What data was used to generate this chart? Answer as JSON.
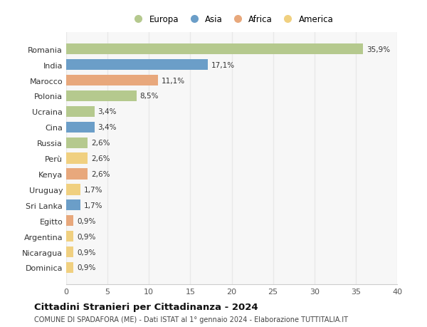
{
  "countries": [
    "Romania",
    "India",
    "Marocco",
    "Polonia",
    "Ucraina",
    "Cina",
    "Russia",
    "Perù",
    "Kenya",
    "Uruguay",
    "Sri Lanka",
    "Egitto",
    "Argentina",
    "Nicaragua",
    "Dominica"
  ],
  "values": [
    35.9,
    17.1,
    11.1,
    8.5,
    3.4,
    3.4,
    2.6,
    2.6,
    2.6,
    1.7,
    1.7,
    0.9,
    0.9,
    0.9,
    0.9
  ],
  "labels": [
    "35,9%",
    "17,1%",
    "11,1%",
    "8,5%",
    "3,4%",
    "3,4%",
    "2,6%",
    "2,6%",
    "2,6%",
    "1,7%",
    "1,7%",
    "0,9%",
    "0,9%",
    "0,9%",
    "0,9%"
  ],
  "continents": [
    "Europa",
    "Asia",
    "Africa",
    "Europa",
    "Europa",
    "Asia",
    "Europa",
    "America",
    "Africa",
    "America",
    "Asia",
    "Africa",
    "America",
    "America",
    "America"
  ],
  "colors": {
    "Europa": "#b5c98e",
    "Asia": "#6b9ec8",
    "Africa": "#e8a87c",
    "America": "#f0d080"
  },
  "legend_order": [
    "Europa",
    "Asia",
    "Africa",
    "America"
  ],
  "xlim": [
    0,
    40
  ],
  "xticks": [
    0,
    5,
    10,
    15,
    20,
    25,
    30,
    35,
    40
  ],
  "title": "Cittadini Stranieri per Cittadinanza - 2024",
  "subtitle": "COMUNE DI SPADAFORA (ME) - Dati ISTAT al 1° gennaio 2024 - Elaborazione TUTTITALIA.IT",
  "bg_color": "#ffffff",
  "plot_bg_color": "#f7f7f7",
  "grid_color": "#e8e8e8",
  "bar_height": 0.7
}
